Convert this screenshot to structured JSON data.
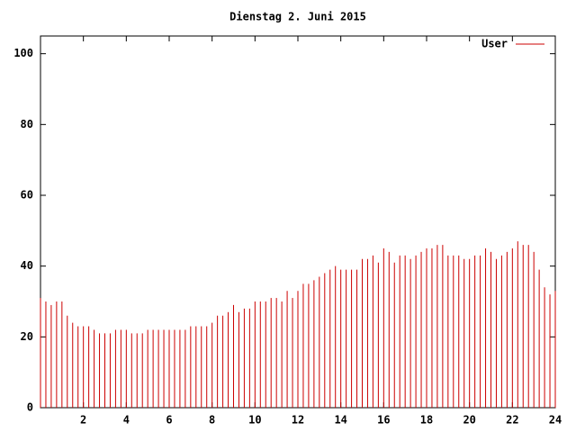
{
  "chart_data": {
    "type": "impulse",
    "title": "Dienstag 2. Juni 2015",
    "x": [
      0,
      0.25,
      0.5,
      0.75,
      1,
      1.25,
      1.5,
      1.75,
      2,
      2.25,
      2.5,
      2.75,
      3,
      3.25,
      3.5,
      3.75,
      4,
      4.25,
      4.5,
      4.75,
      5,
      5.25,
      5.5,
      5.75,
      6,
      6.25,
      6.5,
      6.75,
      7,
      7.25,
      7.5,
      7.75,
      8,
      8.25,
      8.5,
      8.75,
      9,
      9.25,
      9.5,
      9.75,
      10,
      10.25,
      10.5,
      10.75,
      11,
      11.25,
      11.5,
      11.75,
      12,
      12.25,
      12.5,
      12.75,
      13,
      13.25,
      13.5,
      13.75,
      14,
      14.25,
      14.5,
      14.75,
      15,
      15.25,
      15.5,
      15.75,
      16,
      16.25,
      16.5,
      16.75,
      17,
      17.25,
      17.5,
      17.75,
      18,
      18.25,
      18.5,
      18.75,
      19,
      19.25,
      19.5,
      19.75,
      20,
      20.25,
      20.5,
      20.75,
      21,
      21.25,
      21.5,
      21.75,
      22,
      22.25,
      22.5,
      22.75,
      23,
      23.25,
      23.5,
      23.75,
      24
    ],
    "series": [
      {
        "name": "User",
        "color": "#cc0000",
        "values": [
          31,
          30,
          29,
          30,
          30,
          26,
          24,
          23,
          23,
          23,
          22,
          21,
          21,
          21,
          22,
          22,
          22,
          21,
          21,
          21,
          22,
          22,
          22,
          22,
          22,
          22,
          22,
          22,
          23,
          23,
          23,
          23,
          24,
          26,
          26,
          27,
          29,
          27,
          28,
          28,
          30,
          30,
          30,
          31,
          31,
          30,
          33,
          31,
          33,
          35,
          35,
          36,
          37,
          38,
          39,
          40,
          39,
          39,
          39,
          39,
          42,
          42,
          43,
          41,
          45,
          44,
          41,
          43,
          43,
          42,
          43,
          44,
          45,
          45,
          46,
          46,
          43,
          43,
          43,
          42,
          42,
          43,
          43,
          45,
          44,
          42,
          43,
          44,
          45,
          47,
          46,
          46,
          44,
          39,
          34,
          32,
          33
        ]
      }
    ],
    "xlim": [
      0,
      24
    ],
    "xticks": [
      2,
      4,
      6,
      8,
      10,
      12,
      14,
      16,
      18,
      20,
      22,
      24
    ],
    "ylim": [
      0,
      105
    ],
    "yticks": [
      0,
      20,
      40,
      60,
      80,
      100
    ]
  }
}
